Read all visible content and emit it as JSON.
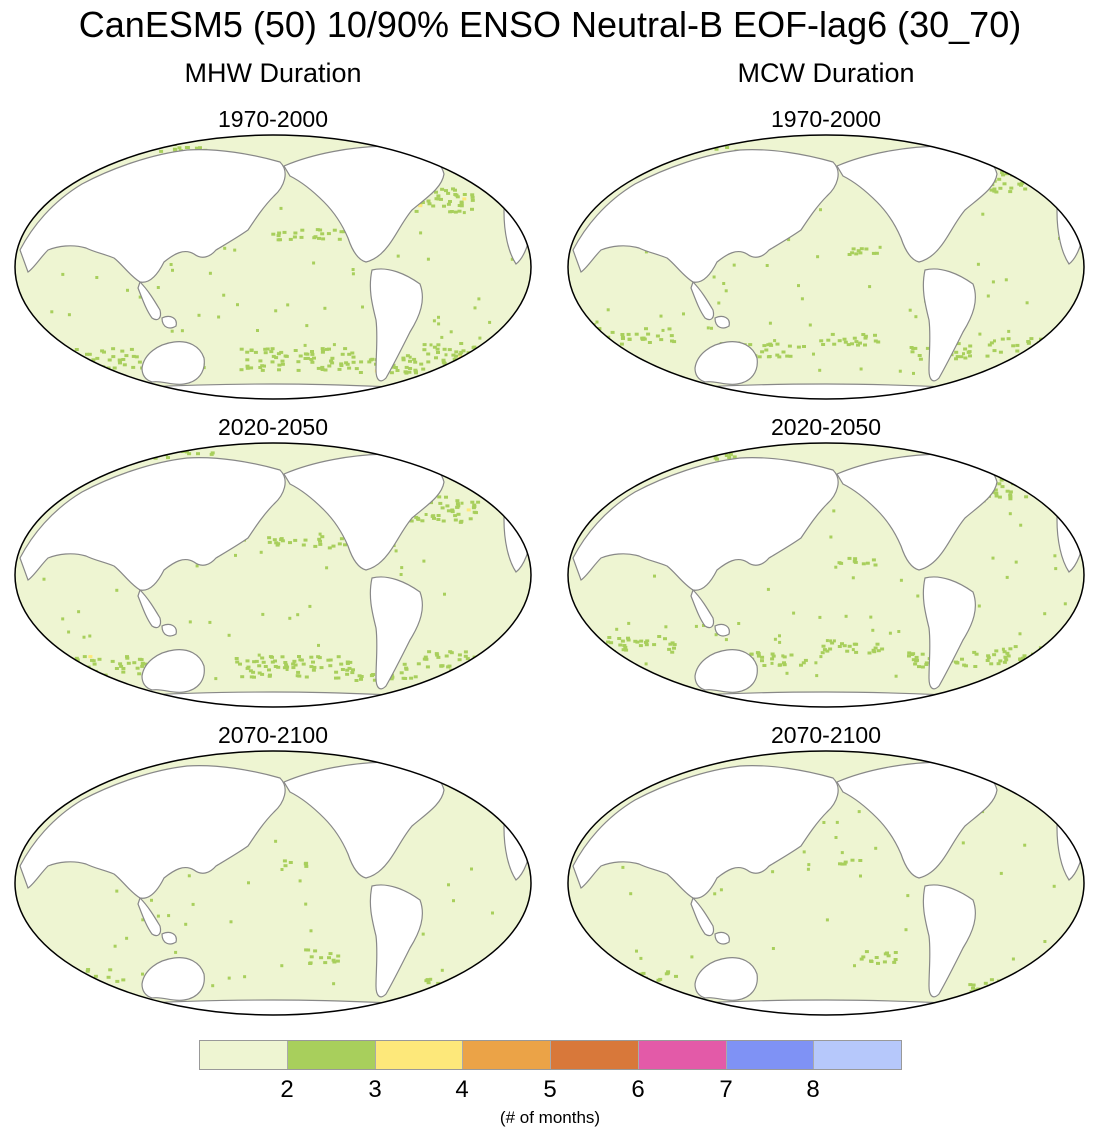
{
  "figure": {
    "title": "CanESM5 (50) 10/90% ENSO Neutral-B EOF-lag6 (30_70)",
    "columns": [
      {
        "title": "MHW Duration"
      },
      {
        "title": "MCW Duration"
      }
    ],
    "rows": [
      "1970-2000",
      "2020-2050",
      "2070-2100"
    ]
  },
  "panels": [
    {
      "id": "mhw-1970-2000",
      "label": "1970-2000",
      "variable": "MHW Duration",
      "highlight": "high"
    },
    {
      "id": "mcw-1970-2000",
      "label": "1970-2000",
      "variable": "MCW Duration",
      "highlight": "medium"
    },
    {
      "id": "mhw-2020-2050",
      "label": "2020-2050",
      "variable": "MHW Duration",
      "highlight": "high"
    },
    {
      "id": "mcw-2020-2050",
      "label": "2020-2050",
      "variable": "MCW Duration",
      "highlight": "medium"
    },
    {
      "id": "mhw-2070-2100",
      "label": "2070-2100",
      "variable": "MHW Duration",
      "highlight": "low"
    },
    {
      "id": "mcw-2070-2100",
      "label": "2070-2100",
      "variable": "MCW Duration",
      "highlight": "low"
    }
  ],
  "colorbar": {
    "colors": [
      "#eef5d2",
      "#a8cf5c",
      "#fde87a",
      "#eba347",
      "#d8783a",
      "#e35aa8",
      "#7f92f5",
      "#b6c8fb"
    ],
    "tick_labels": [
      "2",
      "3",
      "4",
      "5",
      "6",
      "7",
      "8"
    ],
    "units": "(# of months)"
  },
  "map_style": {
    "ocean_base": "#eef5d2",
    "land": "#ffffff",
    "coastline": "#888888",
    "border": "#000000"
  }
}
